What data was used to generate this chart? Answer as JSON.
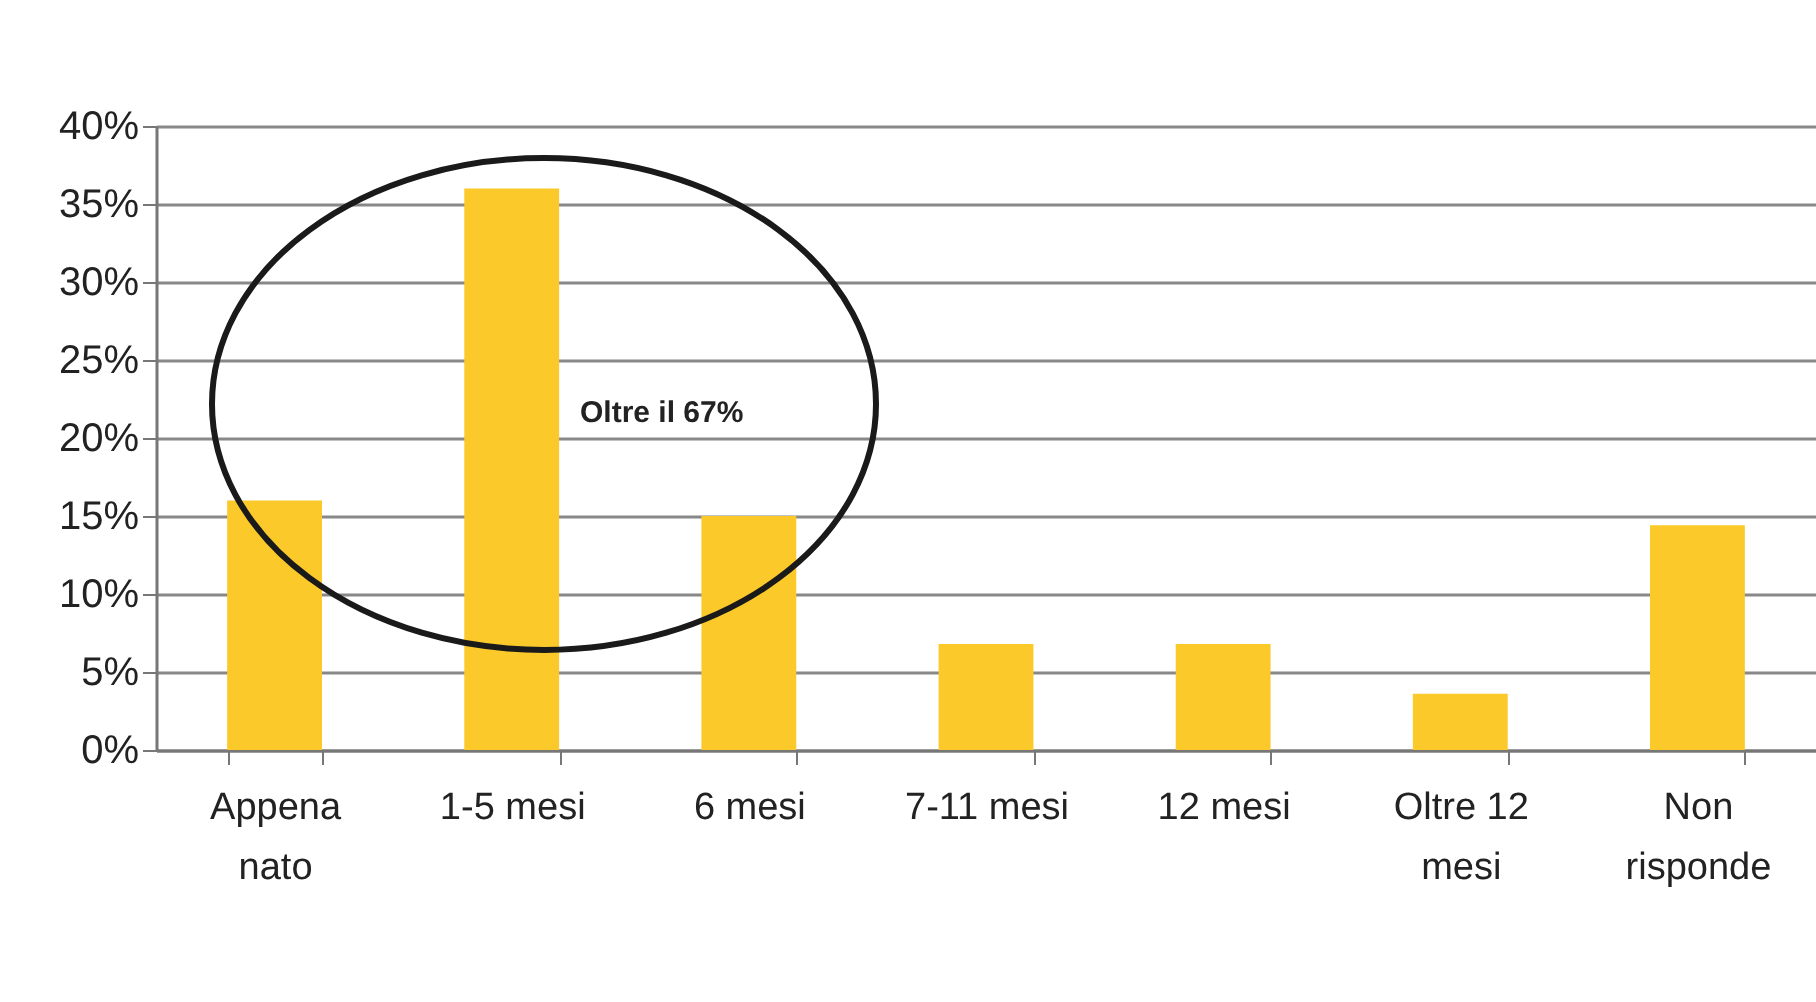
{
  "chart_data": {
    "type": "bar",
    "categories": [
      "Appena nato",
      "1-5 mesi",
      "6 mesi",
      "7-11 mesi",
      "12 mesi",
      "Oltre 12 mesi",
      "Non risponde"
    ],
    "values": [
      16,
      36,
      15,
      6.8,
      6.8,
      3.6,
      14.4
    ],
    "color": "#fcc92b",
    "ylim": [
      0,
      40
    ],
    "yticks": [
      {
        "value": 0,
        "label": "0%"
      },
      {
        "value": 5,
        "label": "5%"
      },
      {
        "value": 10,
        "label": "10%"
      },
      {
        "value": 15,
        "label": "15%"
      },
      {
        "value": 20,
        "label": "20%"
      },
      {
        "value": 25,
        "label": "25%"
      },
      {
        "value": 30,
        "label": "30%"
      },
      {
        "value": 35,
        "label": "35%"
      },
      {
        "value": 40,
        "label": "40%"
      }
    ],
    "grid": "y",
    "annotations": [
      "Oltre il 67%"
    ]
  }
}
